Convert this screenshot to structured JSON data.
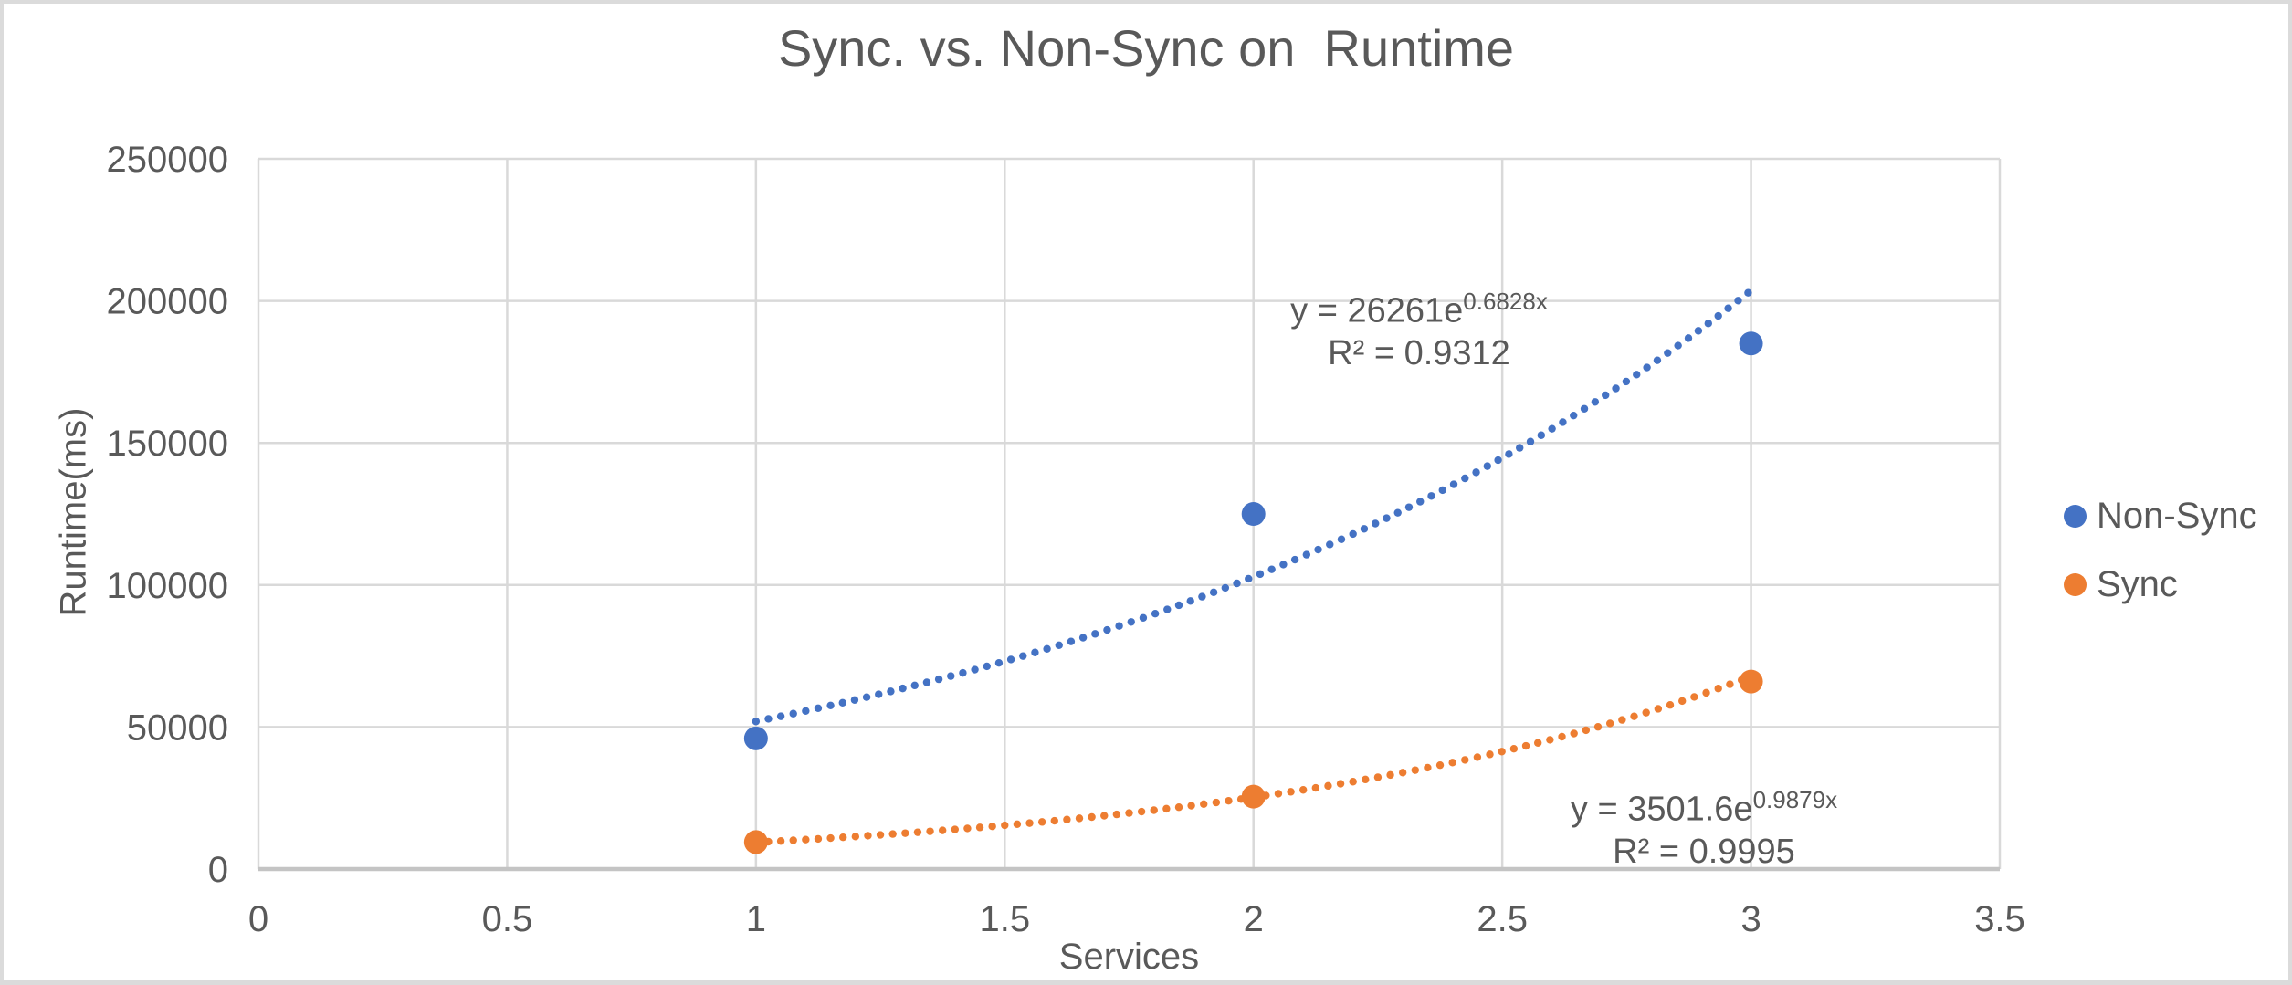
{
  "window": {
    "background": "#ffffff",
    "border_color": "#dbdbdb"
  },
  "colors": {
    "text": "#595959",
    "gridline": "#d9d9d9",
    "axis_line": "#c4c4c4",
    "non_sync": "#4472c4",
    "sync": "#ed7d31"
  },
  "chart_data": {
    "type": "scatter",
    "title": "Sync. vs. Non-Sync on  Runtime",
    "xlabel": "Services",
    "ylabel": "Runtime(ms)",
    "xlim": [
      0,
      3.5
    ],
    "ylim": [
      0,
      250000
    ],
    "x_ticks": [
      0,
      0.5,
      1,
      1.5,
      2,
      2.5,
      3,
      3.5
    ],
    "y_ticks": [
      0,
      50000,
      100000,
      150000,
      200000,
      250000
    ],
    "grid": true,
    "legend_position": "right",
    "series": [
      {
        "name": "Non-Sync",
        "id": "non-sync",
        "color": "#4472c4",
        "x": [
          1,
          2,
          3
        ],
        "y": [
          46000,
          125000,
          185000
        ],
        "trendline": {
          "type": "exponential",
          "style": "dotted",
          "a": 26261,
          "b": 0.6828,
          "range": [
            1,
            3
          ],
          "equation_prefix": "y = 26261e",
          "equation_exponent": "0.6828x",
          "r_squared_label": "R² = 0.9312"
        }
      },
      {
        "name": "Sync",
        "id": "sync",
        "color": "#ed7d31",
        "x": [
          1,
          2,
          3
        ],
        "y": [
          9500,
          25500,
          66000
        ],
        "trendline": {
          "type": "exponential",
          "style": "dotted",
          "a": 3501.6,
          "b": 0.9879,
          "range": [
            1,
            3
          ],
          "equation_prefix": "y = 3501.6e",
          "equation_exponent": "0.9879x",
          "r_squared_label": "R² = 0.9995"
        }
      }
    ]
  }
}
